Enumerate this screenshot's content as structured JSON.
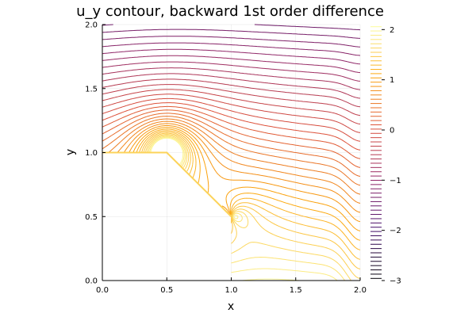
{
  "chart_data": {
    "type": "contour",
    "title": "u_y contour, backward 1st order difference",
    "xlabel": "x",
    "ylabel": "y",
    "xlim": [
      0,
      2
    ],
    "ylim": [
      0,
      2
    ],
    "xticks": [
      "0.0",
      "0.5",
      "1.0",
      "1.5",
      "2.0"
    ],
    "yticks": [
      "0.0",
      "0.5",
      "1.0",
      "1.5",
      "2.0"
    ],
    "grid": true,
    "boundary": [
      [
        0,
        1
      ],
      [
        0.5,
        1
      ],
      [
        1,
        0.5
      ]
    ],
    "colorbar": {
      "min": -3,
      "max": 2.1,
      "ticks": [
        "−3",
        "−2",
        "−1",
        "0",
        "1",
        "2"
      ],
      "tick_values": [
        -3,
        -2,
        -1,
        0,
        1,
        2
      ],
      "colormap": [
        "#000004",
        "#420a68",
        "#932667",
        "#dd513a",
        "#fca50a",
        "#fcffa4"
      ]
    }
  }
}
